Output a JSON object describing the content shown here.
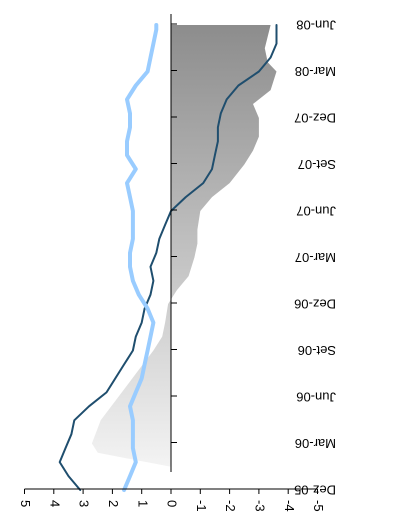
{
  "chart_data": {
    "type": "line",
    "orientation": "rotated-180",
    "categories": [
      "Dez-05",
      "Mar-06",
      "Jun-06",
      "Set-06",
      "Dez-06",
      "Mar-07",
      "Jun-07",
      "Set-07",
      "Dez-07",
      "Mar-08",
      "Jun-08"
    ],
    "y_ticks": [
      5,
      4,
      3,
      2,
      1,
      0,
      -1,
      -2,
      -3,
      -4,
      -5
    ],
    "ylim": [
      -5,
      5
    ],
    "grid": false,
    "legend": "none",
    "colors": {
      "area": "#b0b0b0",
      "dark_line": "#1f4e6e",
      "light_line": "#99ccff",
      "axis": "#000000"
    },
    "series": [
      {
        "kind": "area",
        "x": [
          0,
          0.5,
          0.8,
          1,
          1.5,
          2,
          2.5,
          3,
          3.3,
          3.6,
          4,
          4.3,
          4.6,
          5,
          5.3,
          5.6,
          6,
          6.3,
          6.6,
          7,
          7.3,
          7.6,
          8,
          8.3,
          8.6,
          9,
          9.2,
          9.5,
          10
        ],
        "values": [
          0,
          0,
          2.5,
          2.7,
          2.4,
          1.8,
          1.2,
          0.6,
          0.3,
          0.2,
          0.1,
          -0.2,
          -0.6,
          -0.8,
          -0.9,
          -0.9,
          -1.0,
          -1.4,
          -2.0,
          -2.5,
          -2.8,
          -3.0,
          -3.0,
          -2.8,
          -3.4,
          -3.6,
          -3.3,
          -3.2,
          -3.4
        ]
      },
      {
        "kind": "line",
        "x": [
          0,
          0.3,
          0.6,
          0.9,
          1.2,
          1.5,
          1.8,
          2.1,
          2.4,
          2.7,
          3.0,
          3.3,
          3.6,
          3.9,
          4.2,
          4.5,
          4.8,
          5.1,
          5.4,
          5.7,
          6.0,
          6.3,
          6.6,
          6.9,
          7.2,
          7.5,
          7.8,
          8.1,
          8.4,
          8.7,
          9.0,
          9.3,
          9.6,
          9.9,
          10
        ],
        "values": [
          3.1,
          3.5,
          3.8,
          3.6,
          3.4,
          3.3,
          2.8,
          2.2,
          1.9,
          1.6,
          1.3,
          1.2,
          1.0,
          0.9,
          0.7,
          0.6,
          0.7,
          0.5,
          0.4,
          0.2,
          0.0,
          -0.5,
          -1.1,
          -1.4,
          -1.5,
          -1.6,
          -1.6,
          -1.7,
          -1.9,
          -2.3,
          -3.0,
          -3.4,
          -3.6,
          -3.6,
          -3.6
        ]
      },
      {
        "kind": "line",
        "x": [
          0,
          0.3,
          0.6,
          0.9,
          1.2,
          1.5,
          1.8,
          2.1,
          2.4,
          2.7,
          3.0,
          3.3,
          3.6,
          3.9,
          4.2,
          4.5,
          4.8,
          5.1,
          5.4,
          5.7,
          6.0,
          6.3,
          6.6,
          6.9,
          7.2,
          7.5,
          7.8,
          8.1,
          8.4,
          8.7,
          9.0,
          9.3,
          9.6,
          9.9,
          10
        ],
        "values": [
          1.6,
          1.4,
          1.2,
          1.3,
          1.3,
          1.3,
          1.4,
          1.2,
          1.0,
          0.9,
          0.8,
          0.7,
          0.6,
          0.8,
          1.1,
          1.3,
          1.4,
          1.4,
          1.3,
          1.3,
          1.3,
          1.4,
          1.5,
          1.2,
          1.5,
          1.5,
          1.4,
          1.4,
          1.5,
          1.2,
          0.8,
          0.7,
          0.6,
          0.5,
          0.5
        ]
      }
    ]
  }
}
